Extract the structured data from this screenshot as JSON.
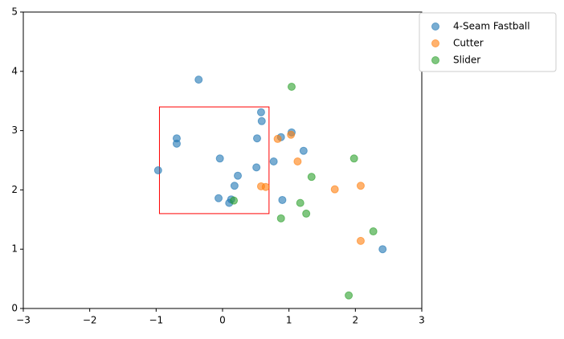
{
  "chart_data": {
    "type": "scatter",
    "xlim": [
      -3,
      3
    ],
    "ylim": [
      0,
      5
    ],
    "xticks": [
      {
        "value": -3,
        "label": "−3"
      },
      {
        "value": -2,
        "label": "−2"
      },
      {
        "value": -1,
        "label": "−1"
      },
      0,
      1,
      2,
      3
    ],
    "yticks": [
      0,
      1,
      2,
      3,
      4,
      5
    ],
    "legend": "outside-upper-right",
    "strike_zone": {
      "x": [
        -0.95,
        0.7
      ],
      "y": [
        1.6,
        3.4
      ],
      "color": "#ff0000"
    },
    "series": [
      {
        "name": "4-Seam Fastball",
        "color": "#1f77b4",
        "x": [
          -0.36,
          0.58,
          0.59,
          -0.69,
          -0.69,
          1.04,
          0.88,
          0.52,
          1.22,
          -0.04,
          0.77,
          0.51,
          -0.97,
          0.23,
          0.18,
          -0.06,
          0.13,
          0.1,
          0.9,
          2.41
        ],
        "values": [
          3.86,
          3.31,
          3.16,
          2.87,
          2.78,
          2.97,
          2.89,
          2.87,
          2.66,
          2.53,
          2.48,
          2.38,
          2.33,
          2.24,
          2.07,
          1.86,
          1.84,
          1.78,
          1.83,
          1.0
        ]
      },
      {
        "name": "Cutter",
        "color": "#ff7f0e",
        "x": [
          0.83,
          1.03,
          1.13,
          0.58,
          0.65,
          1.69,
          2.08,
          2.08
        ],
        "values": [
          2.86,
          2.93,
          2.48,
          2.06,
          2.05,
          2.01,
          2.07,
          1.14
        ]
      },
      {
        "name": "Slider",
        "color": "#2ca02c",
        "x": [
          1.04,
          1.98,
          1.34,
          0.17,
          1.17,
          1.26,
          0.88,
          2.27,
          1.9
        ],
        "values": [
          3.74,
          2.53,
          2.22,
          1.82,
          1.78,
          1.6,
          1.52,
          1.3,
          0.22
        ]
      }
    ]
  }
}
